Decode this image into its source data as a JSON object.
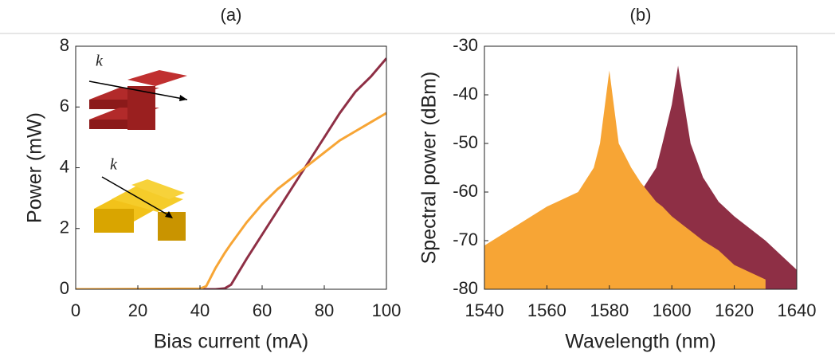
{
  "chart_data": [
    {
      "type": "line",
      "title": "(a)",
      "xlabel": "Bias current (mA)",
      "ylabel": "Power (mW)",
      "x": [
        0,
        40,
        42,
        45,
        48,
        50,
        55,
        60,
        65,
        70,
        75,
        80,
        85,
        90,
        95,
        100
      ],
      "series": [
        {
          "color": "#8e2f45",
          "values": [
            0,
            0,
            0,
            0,
            0.03,
            0.15,
            1.0,
            1.8,
            2.6,
            3.4,
            4.2,
            5.0,
            5.8,
            6.5,
            7.0,
            7.6
          ]
        },
        {
          "color": "#f7a535",
          "values": [
            0,
            0.02,
            0.1,
            0.7,
            1.2,
            1.5,
            2.2,
            2.8,
            3.3,
            3.7,
            4.1,
            4.5,
            4.9,
            5.2,
            5.5,
            5.8
          ]
        }
      ],
      "xlim": [
        0,
        100
      ],
      "xticks": [
        0,
        20,
        40,
        60,
        80,
        100
      ],
      "ylim": [
        0,
        8
      ],
      "yticks": [
        0,
        2,
        4,
        6,
        8
      ],
      "annotations": [
        "k⃗",
        "k⃗"
      ]
    },
    {
      "type": "area",
      "title": "(b)",
      "xlabel": "Wavelength (nm)",
      "ylabel": "Spectral power (dBm)",
      "x": [
        1540,
        1550,
        1560,
        1570,
        1575,
        1577,
        1580,
        1583,
        1587,
        1590,
        1595,
        1597,
        1600,
        1602,
        1604,
        1606,
        1610,
        1615,
        1620,
        1630,
        1640
      ],
      "series": [
        {
          "color": "#8e2f45",
          "values": [
            null,
            null,
            null,
            null,
            null,
            null,
            null,
            -65,
            -62,
            -60,
            -55,
            -50,
            -42,
            -34,
            -42,
            -50,
            -57,
            -62,
            -65,
            -70,
            -76
          ]
        },
        {
          "color": "#f7a535",
          "values": [
            -71,
            -67,
            -63,
            -60,
            -55,
            -50,
            -35,
            -50,
            -55,
            -58,
            -62,
            -63,
            -65,
            -66,
            -67,
            -68,
            -70,
            -72,
            -75,
            -78,
            null
          ]
        }
      ],
      "xlim": [
        1540,
        1640
      ],
      "xticks": [
        1540,
        1560,
        1580,
        1600,
        1620,
        1640
      ],
      "ylim": [
        -80,
        -30
      ],
      "yticks": [
        -80,
        -70,
        -60,
        -50,
        -40,
        -30
      ]
    }
  ]
}
